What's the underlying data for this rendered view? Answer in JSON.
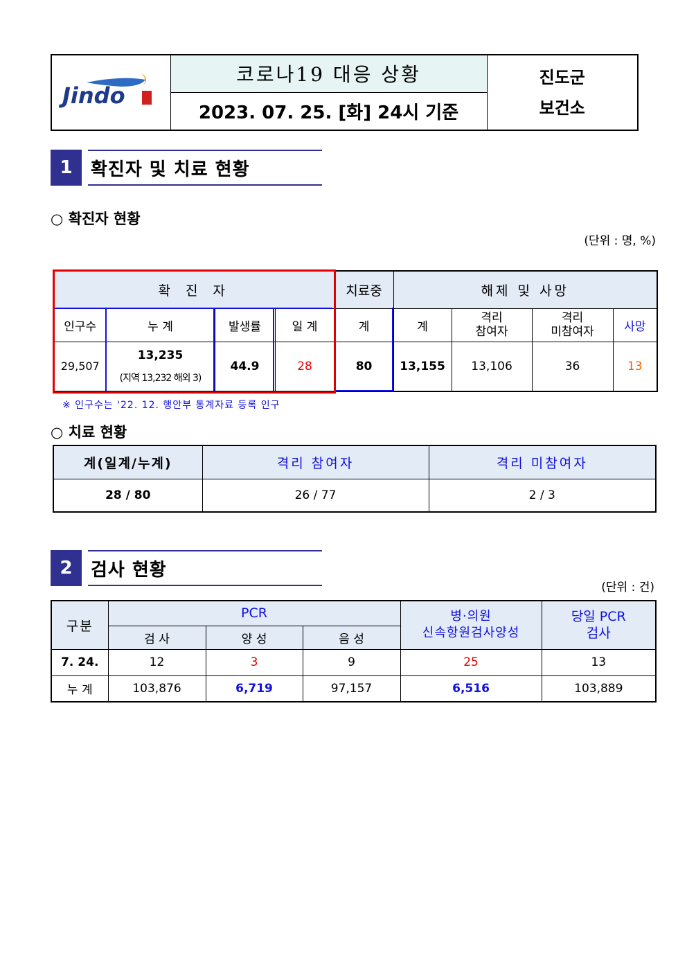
{
  "header": {
    "logo_text": "Jindo",
    "title": "코로나19 대응 상황",
    "date": "2023. 07. 25. [화] 24시 기준",
    "org_line1": "진도군",
    "org_line2": "보건소"
  },
  "section1": {
    "number": "1",
    "title": "확진자 및 치료 현황"
  },
  "confirmed": {
    "subtitle": "○ 확진자 현황",
    "unit": "(단위 : 명, %)",
    "group_headers": [
      "확 진 자",
      "치료중",
      "해제 및 사망"
    ],
    "headers": [
      "인구수",
      "누 계",
      "발생률",
      "일 계",
      "계",
      "계",
      "격리\n참여자",
      "격리\n미참여자",
      "사망"
    ],
    "values": {
      "population": "29,507",
      "cumulative": "13,235",
      "cumulative_detail": "(지역 13,232 해외 3)",
      "rate": "44.9",
      "daily": "28",
      "treating": "80",
      "released_total": "13,155",
      "released_isolation": "13,106",
      "released_non_isolation": "36",
      "deaths": "13"
    },
    "note": "※ 인구수는 '22. 12. 행안부 통계자료 등록 인구"
  },
  "treatment": {
    "subtitle": "○ 치료 현황",
    "headers": [
      "계(일계/누계)",
      "격리 참여자",
      "격리 미참여자"
    ],
    "values": [
      "28 / 80",
      "26 / 77",
      "2 / 3"
    ]
  },
  "section2": {
    "number": "2",
    "title": "검사 현황",
    "unit": "(단위 : 건)"
  },
  "tests": {
    "col_gubun": "구분",
    "col_pcr": "PCR",
    "pcr_sub": [
      "검 사",
      "양 성",
      "음 성"
    ],
    "col_rapid": "병·의원\n신속항원검사양성",
    "col_today": "당일 PCR\n검사",
    "rows": [
      {
        "label": "7. 24.",
        "values": [
          "12",
          "3",
          "9",
          "25",
          "13"
        ]
      },
      {
        "label": "누 계",
        "values": [
          "103,876",
          "6,719",
          "97,157",
          "6,516",
          "103,889"
        ]
      }
    ]
  },
  "colors": {
    "section_blue": "#303090",
    "header_bg": "#e3ebf6",
    "title_bg": "#e6f4f4",
    "red": "#e00000",
    "blue": "#1010e0",
    "orange": "#f06000"
  }
}
